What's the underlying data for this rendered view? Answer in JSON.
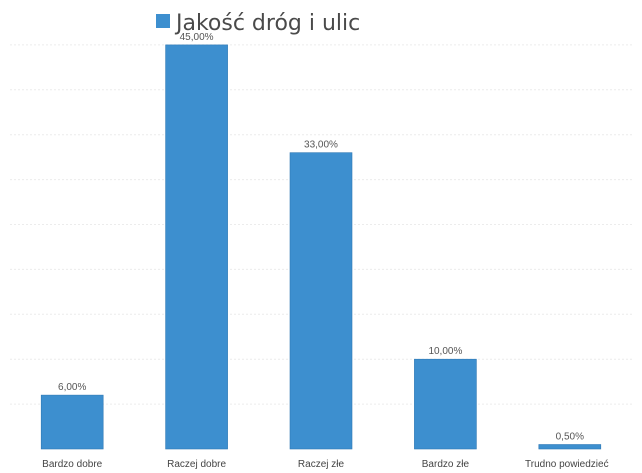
{
  "chart_data": {
    "type": "bar",
    "title": "",
    "xlabel": "",
    "ylabel": "",
    "categories": [
      "Bardzo dobre",
      "Raczej dobre",
      "Raczej złe",
      "Bardzo złe",
      "Trudno powiedzieć"
    ],
    "series": [
      {
        "name": "Jakość dróg i ulic",
        "values": [
          6.0,
          45.0,
          33.0,
          10.0,
          0.5
        ],
        "labels": [
          "6,00%",
          "45,00%",
          "33,00%",
          "10,00%",
          "0,50%"
        ]
      }
    ],
    "ylim": [
      0,
      50
    ],
    "grid": true,
    "legend_position": "top",
    "colors": {
      "bar": "#3d8fcf",
      "bar_edge": "#2f79b5",
      "grid": "#ececec"
    }
  }
}
